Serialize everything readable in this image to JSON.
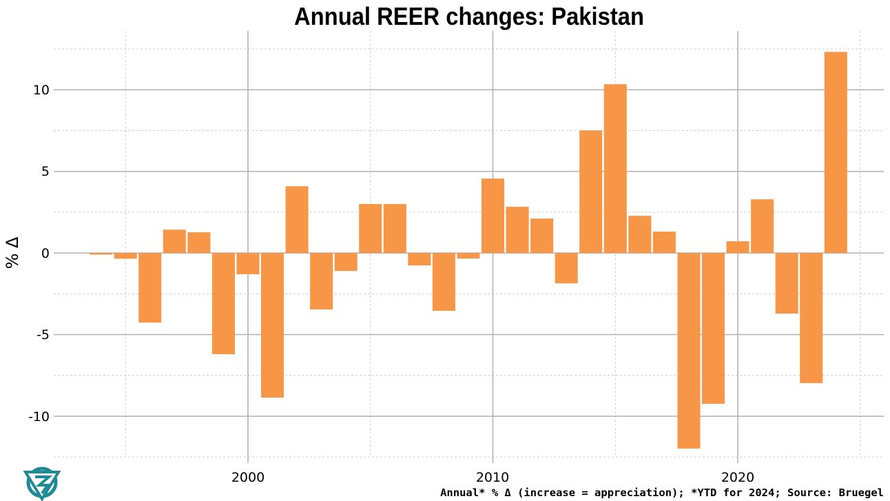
{
  "chart_data": {
    "type": "bar",
    "title": "Annual REER changes: Pakistan",
    "xlabel": "",
    "ylabel": "% Δ",
    "caption": "Annual* % Δ (increase = appreciation); *YTD for 2024; Source: Bruegel",
    "x": [
      1994,
      1995,
      1996,
      1997,
      1998,
      1999,
      2000,
      2001,
      2002,
      2003,
      2004,
      2005,
      2006,
      2007,
      2008,
      2009,
      2010,
      2011,
      2012,
      2013,
      2014,
      2015,
      2016,
      2017,
      2018,
      2019,
      2020,
      2021,
      2022,
      2023,
      2024
    ],
    "values": [
      -0.1,
      -0.35,
      -4.26,
      1.43,
      1.27,
      -6.2,
      -1.3,
      -8.86,
      4.09,
      -3.46,
      -1.1,
      3.0,
      3.0,
      -0.76,
      -3.54,
      -0.34,
      4.56,
      2.83,
      2.11,
      -1.86,
      7.51,
      10.34,
      2.28,
      1.31,
      -11.98,
      -9.24,
      0.72,
      3.29,
      -3.71,
      -7.97,
      12.32
    ],
    "xlim": [
      1992.07,
      2025.96
    ],
    "ylim": [
      -12.45,
      13.6
    ],
    "x_ticks": [
      "2000",
      "2010",
      "2020"
    ],
    "y_ticks": [
      "-10",
      "-5",
      "0",
      "5",
      "10"
    ],
    "grid": true,
    "bar_color": "#F79646",
    "logo": "Bruegel-style triangular teal logo"
  }
}
